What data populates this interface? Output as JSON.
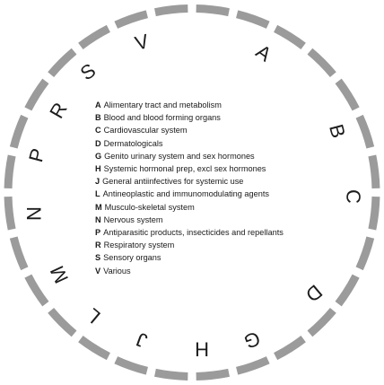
{
  "ring": {
    "color": "#9b9b9b",
    "letters": [
      "A",
      "B",
      "C",
      "D",
      "G",
      "H",
      "J",
      "L",
      "M",
      "N",
      "P",
      "R",
      "S",
      "V"
    ]
  },
  "legend": [
    {
      "code": "A",
      "text": "Alimentary tract and metabolism"
    },
    {
      "code": "B",
      "text": "Blood and blood forming organs"
    },
    {
      "code": "C",
      "text": "Cardiovascular system"
    },
    {
      "code": "D",
      "text": "Dermatologicals"
    },
    {
      "code": "G",
      "text": "Genito urinary system and sex hormones"
    },
    {
      "code": "H",
      "text": "Systemic hormonal prep, excl sex hormones"
    },
    {
      "code": "J",
      "text": "General antiinfectives for systemic use"
    },
    {
      "code": "L",
      "text": "Antineoplastic and immunomodulating agents"
    },
    {
      "code": "M",
      "text": "Musculo-skeletal system"
    },
    {
      "code": "N",
      "text": "Nervous system"
    },
    {
      "code": "P",
      "text": "Antiparasitic products, insecticides and repellants"
    },
    {
      "code": "R",
      "text": "Respiratory system"
    },
    {
      "code": "S",
      "text": "Sensory organs"
    },
    {
      "code": "V",
      "text": "Various"
    }
  ]
}
